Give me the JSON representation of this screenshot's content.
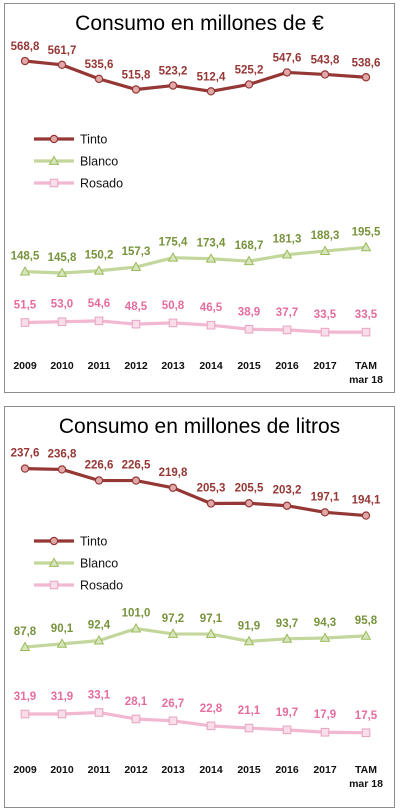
{
  "chart_data": [
    {
      "type": "line",
      "title": "Consumo en millones de €",
      "categories": [
        "2009",
        "2010",
        "2011",
        "2012",
        "2013",
        "2014",
        "2015",
        "2016",
        "2017",
        "TAM mar 18"
      ],
      "tick_labels": [
        [
          "2009"
        ],
        [
          "2010"
        ],
        [
          "2011"
        ],
        [
          "2012"
        ],
        [
          "2013"
        ],
        [
          "2014"
        ],
        [
          "2015"
        ],
        [
          "2016"
        ],
        [
          "2017"
        ],
        [
          "TAM",
          "mar 18"
        ]
      ],
      "ylim": [
        0,
        600
      ],
      "grid": false,
      "legend_position": "left",
      "series": [
        {
          "name": "Tinto",
          "color": "#953735",
          "marker": "circle",
          "values": [
            568.8,
            561.7,
            535.6,
            515.8,
            523.2,
            512.4,
            525.2,
            547.6,
            543.8,
            538.6
          ],
          "labels": [
            "568,8",
            "561,7",
            "535,6",
            "515,8",
            "523,2",
            "512,4",
            "525,2",
            "547,6",
            "543,8",
            "538,6"
          ]
        },
        {
          "name": "Blanco",
          "color": "#77933c",
          "line_color": "#c3d69b",
          "marker": "triangle",
          "values": [
            148.5,
            145.8,
            150.2,
            157.3,
            175.4,
            173.4,
            168.7,
            181.3,
            188.3,
            195.5
          ],
          "labels": [
            "148,5",
            "145,8",
            "150,2",
            "157,3",
            "175,4",
            "173,4",
            "168,7",
            "181,3",
            "188,3",
            "195,5"
          ]
        },
        {
          "name": "Rosado",
          "color": "#e46c9e",
          "line_color": "#f2b8d2",
          "marker": "square",
          "values": [
            51.5,
            53.0,
            54.6,
            48.5,
            50.8,
            46.5,
            38.9,
            37.7,
            33.5,
            33.5
          ],
          "labels": [
            "51,5",
            "53,0",
            "54,6",
            "48,5",
            "50,8",
            "46,5",
            "38,9",
            "37,7",
            "33,5",
            "33,5"
          ]
        }
      ]
    },
    {
      "type": "line",
      "title": "Consumo en millones de litros",
      "categories": [
        "2009",
        "2010",
        "2011",
        "2012",
        "2013",
        "2014",
        "2015",
        "2016",
        "2017",
        "TAM mar 18"
      ],
      "tick_labels": [
        [
          "2009"
        ],
        [
          "2010"
        ],
        [
          "2011"
        ],
        [
          "2012"
        ],
        [
          "2013"
        ],
        [
          "2014"
        ],
        [
          "2015"
        ],
        [
          "2016"
        ],
        [
          "2017"
        ],
        [
          "TAM",
          "mar 18"
        ]
      ],
      "ylim": [
        0,
        240
      ],
      "grid": false,
      "legend_position": "left",
      "series": [
        {
          "name": "Tinto",
          "color": "#953735",
          "marker": "circle",
          "values": [
            237.6,
            236.8,
            226.6,
            226.5,
            219.8,
            205.3,
            205.5,
            203.2,
            197.1,
            194.1
          ],
          "labels": [
            "237,6",
            "236,8",
            "226,6",
            "226,5",
            "219,8",
            "205,3",
            "205,5",
            "203,2",
            "197,1",
            "194,1"
          ]
        },
        {
          "name": "Blanco",
          "color": "#77933c",
          "line_color": "#c3d69b",
          "marker": "triangle",
          "values": [
            87.8,
            90.1,
            92.4,
            101.0,
            97.2,
            97.1,
            91.9,
            93.7,
            94.3,
            95.8
          ],
          "labels": [
            "87,8",
            "90,1",
            "92,4",
            "101,0",
            "97,2",
            "97,1",
            "91,9",
            "93,7",
            "94,3",
            "95,8"
          ]
        },
        {
          "name": "Rosado",
          "color": "#e46c9e",
          "line_color": "#f2b8d2",
          "marker": "square",
          "values": [
            31.9,
            31.9,
            33.1,
            28.1,
            26.7,
            22.8,
            21.1,
            19.7,
            17.9,
            17.5
          ],
          "labels": [
            "31,9",
            "31,9",
            "33,1",
            "28,1",
            "26,7",
            "22,8",
            "21,1",
            "19,7",
            "17,9",
            "17,5"
          ]
        }
      ]
    }
  ]
}
